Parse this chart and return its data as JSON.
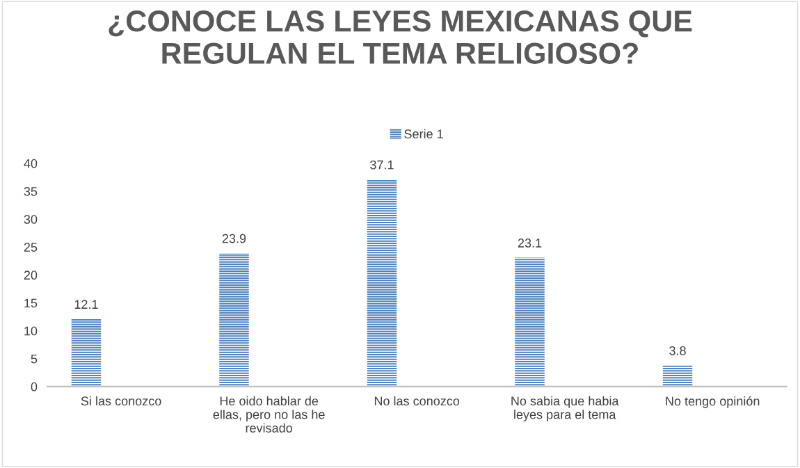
{
  "chart_data": {
    "type": "bar",
    "title": "¿CONOCE LAS LEYES MEXICANAS QUE\nREGULAN EL TEMA RELIGIOSO?",
    "categories": [
      "Si las conozco",
      "He oido hablar de\nellas, pero no las he\nrevisado",
      "No las conozco",
      "No sabia que habia\nleyes para el tema",
      "No tengo opinión"
    ],
    "series": [
      {
        "name": "Serie 1",
        "color": "#4f81bd",
        "values": [
          12.1,
          23.9,
          37.1,
          23.1,
          3.8
        ]
      }
    ],
    "ylim": [
      0,
      40
    ],
    "yticks": [
      0,
      5,
      10,
      15,
      20,
      25,
      30,
      35,
      40
    ],
    "data_labels": true,
    "legend": "top",
    "grid": false
  }
}
